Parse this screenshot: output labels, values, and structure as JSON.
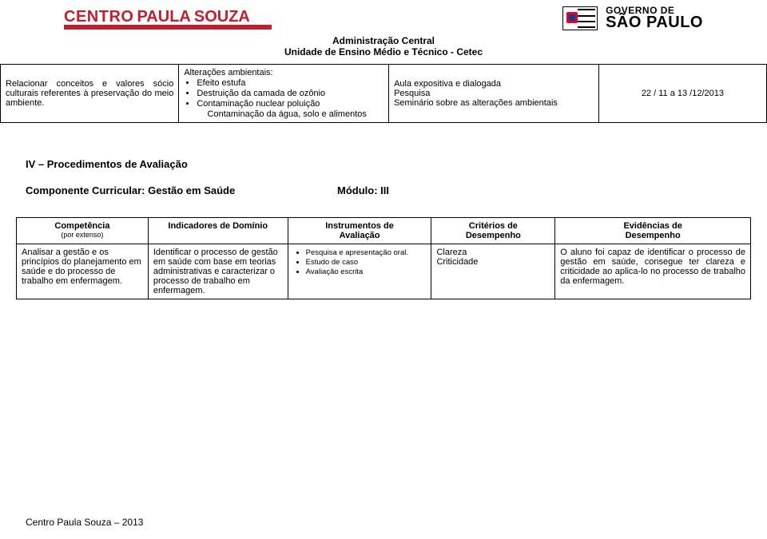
{
  "header": {
    "logo_left": {
      "p1": "CENTRO",
      "p2": "PAULA",
      "p3": "SOUZA"
    },
    "logo_right": {
      "line1": "GOVERNO DE",
      "line2": "SÃO PAULO"
    },
    "center_line1": "Administração Central",
    "center_line2": "Unidade de Ensino Médio e Técnico - Cetec"
  },
  "table1": {
    "c1": "Relacionar conceitos e valores sócio culturais referentes à preservação do meio ambiente.",
    "c2_title": "Alterações ambientais:",
    "c2_items": [
      "Efeito estufa",
      "Destruição da camada de ozônio",
      "Contaminação nuclear poluição"
    ],
    "c2_tail": "Contaminação da água, solo e alimentos",
    "c3_items": [
      "Aula expositiva e dialogada",
      "Pesquisa",
      "Seminário sobre as alterações ambientais"
    ],
    "c4": "22 / 11 a 13 /12/2013"
  },
  "section4": {
    "title": "IV – Procedimentos de Avaliação",
    "component_label": "Componente Curricular: Gestão em Saúde",
    "module_label": "Módulo: III"
  },
  "eval_head": {
    "h1": "Competência",
    "h1_sub": "(por extenso)",
    "h2": "Indicadores de Domínio",
    "h3a": "Instrumentos de",
    "h3b": "Avaliação",
    "h4a": "Critérios de",
    "h4b": "Desempenho",
    "h5a": "Evidências de",
    "h5b": "Desempenho"
  },
  "eval_row": {
    "c1": "Analisar a gestão e os princípios do planejamento em saúde e do processo de trabalho em enfermagem.",
    "c2": "Identificar o processo de gestão em saúde com base em teorias administrativas e caracterizar o processo de trabalho em enfermagem.",
    "c3_items": [
      "Pesquisa e apresentação oral.",
      "Estudo de caso",
      "Avaliação escrita"
    ],
    "c4_items": [
      "Clareza",
      "Criticidade"
    ],
    "c5": "O aluno foi capaz de identificar o processo de gestão em saúde, consegue ter clareza e criticidade ao aplica-lo no processo de trabalho da enfermagem."
  },
  "footer": "Centro Paula Souza – 2013"
}
